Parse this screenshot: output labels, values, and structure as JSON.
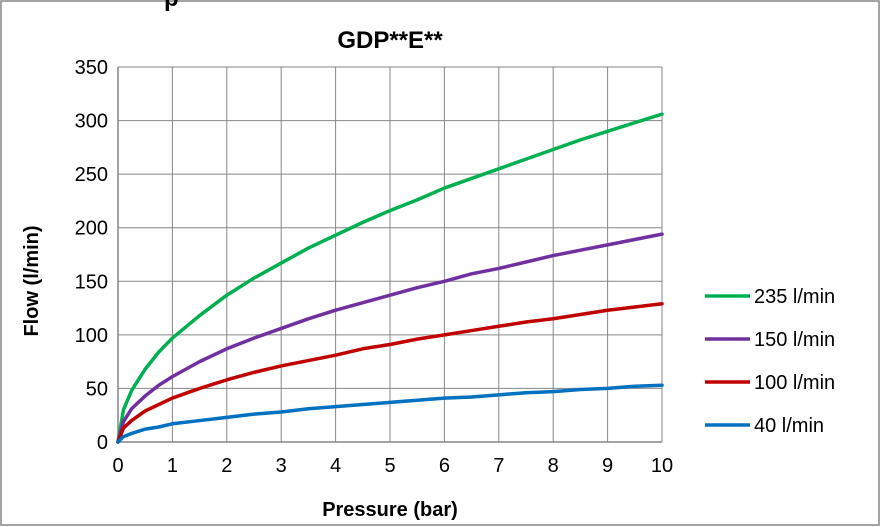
{
  "header_fragment": "p",
  "chart_data": {
    "type": "line",
    "title": "GDP**E**",
    "xlabel": "Pressure (bar)",
    "ylabel": "Flow (l/min)",
    "xlim": [
      0,
      10
    ],
    "ylim": [
      0,
      350
    ],
    "xticks": [
      0,
      1,
      2,
      3,
      4,
      5,
      6,
      7,
      8,
      9,
      10
    ],
    "yticks": [
      0,
      50,
      100,
      150,
      200,
      250,
      300,
      350
    ],
    "grid": true,
    "legend_position": "right",
    "x": [
      0,
      0.1,
      0.25,
      0.5,
      0.75,
      1,
      1.5,
      2,
      2.5,
      3,
      3.5,
      4,
      4.5,
      5,
      5.5,
      6,
      6.5,
      7,
      7.5,
      8,
      8.5,
      9,
      9.5,
      10
    ],
    "series": [
      {
        "name": "235 l/min",
        "color": "#00b050",
        "values": [
          0,
          30,
          48,
          68,
          84,
          97,
          118,
          137,
          153,
          167,
          181,
          193,
          205,
          216,
          226,
          237,
          246,
          255,
          264,
          273,
          282,
          290,
          298,
          306
        ]
      },
      {
        "name": "150 l/min",
        "color": "#7030a0",
        "values": [
          0,
          19,
          31,
          43,
          53,
          61,
          75,
          87,
          97,
          106,
          115,
          123,
          130,
          137,
          144,
          150,
          157,
          162,
          168,
          174,
          179,
          184,
          189,
          194
        ]
      },
      {
        "name": "100 l/min",
        "color": "#c00000",
        "values": [
          0,
          13,
          20,
          29,
          35,
          41,
          50,
          58,
          65,
          71,
          76,
          81,
          87,
          91,
          96,
          100,
          104,
          108,
          112,
          115,
          119,
          123,
          126,
          129
        ]
      },
      {
        "name": "40 l/min",
        "color": "#0070c0",
        "values": [
          0,
          5,
          8,
          12,
          14,
          17,
          20,
          23,
          26,
          28,
          31,
          33,
          35,
          37,
          39,
          41,
          42,
          44,
          46,
          47,
          49,
          50,
          52,
          53
        ]
      }
    ]
  }
}
